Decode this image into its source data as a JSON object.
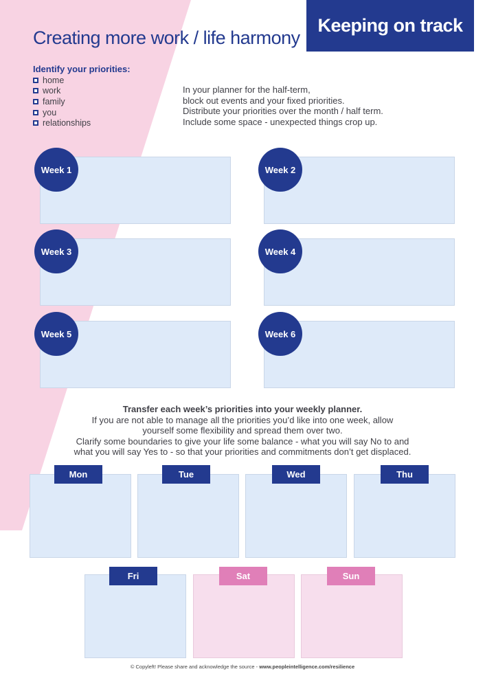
{
  "header": {
    "badge": "Keeping on track",
    "title": "Creating more work / life harmony"
  },
  "priorities": {
    "heading": "Identify your priorities:",
    "items": [
      "home",
      "work",
      "family",
      "you",
      "relationships"
    ]
  },
  "instructions": [
    "In your planner for the half-term,",
    "block out events and your fixed priorities.",
    "Distribute your priorities over the month / half term.",
    "Include some space - unexpected things crop up."
  ],
  "weeks": [
    "Week 1",
    "Week 2",
    "Week 3",
    "Week 4",
    "Week 5",
    "Week 6"
  ],
  "transfer": {
    "heading": "Transfer each week’s priorities into your weekly planner.",
    "lines": [
      "If you are not able to manage all the priorities you’d like into one week, allow",
      "yourself some flexibility and spread them over two.",
      "Clarify some boundaries to give your life some balance - what you will say No to and",
      "what you will say Yes to - so that your priorities and commitments don’t get displaced."
    ]
  },
  "days": [
    "Mon",
    "Tue",
    "Wed",
    "Thu",
    "Fri",
    "Sat",
    "Sun"
  ],
  "footer": {
    "text": "© Copyleft! Please share and acknowledge the source - ",
    "url": "www.peopleintelligence.com/resilience"
  },
  "colors": {
    "navy": "#233a8f",
    "pink": "#f8d3e3",
    "light_blue": "#deeaf9",
    "light_pink": "#f7deed",
    "pink_tab": "#e07fb8"
  }
}
